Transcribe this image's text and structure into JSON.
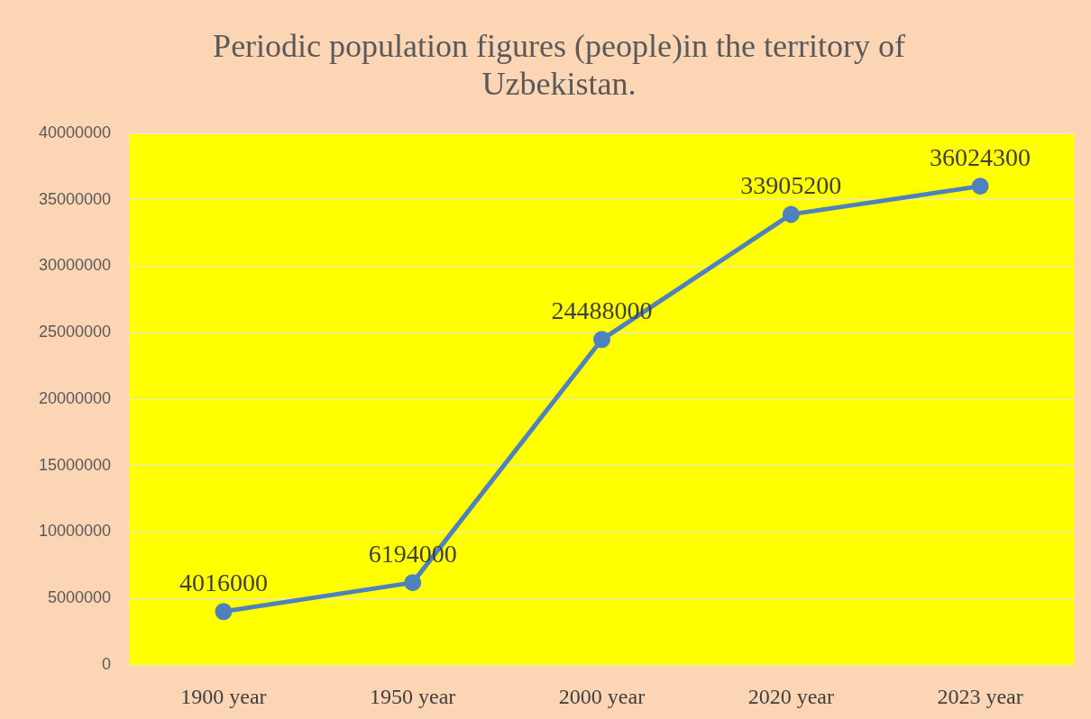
{
  "chart_data": {
    "type": "line",
    "title": "Periodic population figures (people)in the territory of Uzbekistan.",
    "categories": [
      "1900 year",
      "1950 year",
      "2000 year",
      "2020 year",
      "2023 year"
    ],
    "series": [
      {
        "color": "#4f81bd",
        "values": [
          4016000,
          6194000,
          24488000,
          33905200,
          36024300
        ]
      }
    ],
    "ylim": [
      0,
      40000000
    ],
    "yticks": [
      0,
      5000000,
      10000000,
      15000000,
      20000000,
      25000000,
      30000000,
      35000000,
      40000000
    ],
    "grid": "y",
    "legend": false,
    "marker": "circle",
    "line_style": "solid",
    "data_labels": true
  }
}
